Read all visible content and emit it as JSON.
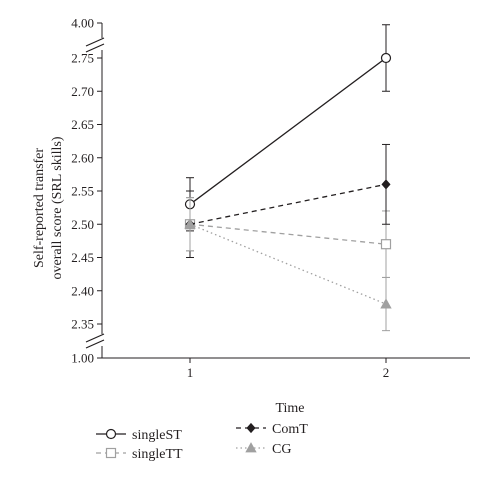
{
  "chart_data": {
    "type": "line",
    "title": "",
    "xlabel": "Time",
    "ylabel_lines": [
      "Self-reported transfer",
      "overall score (SRL skills)"
    ],
    "x": [
      1,
      2
    ],
    "x_tick_labels": [
      "1",
      "2"
    ],
    "y_tick_labels": [
      "1.00",
      "2.35",
      "2.40",
      "2.45",
      "2.50",
      "2.55",
      "2.60",
      "2.65",
      "2.70",
      "2.75",
      "4.00"
    ],
    "y_axis_break": {
      "lower": 1.0,
      "upper": 4.0,
      "range": [
        2.35,
        2.75
      ]
    },
    "grid": false,
    "legend_position": "bottom",
    "series": [
      {
        "name": "singleST",
        "values": [
          2.53,
          2.75
        ],
        "error": [
          [
            2.49,
            2.57
          ],
          [
            2.7,
            2.8
          ]
        ],
        "line_style": "solid",
        "marker": "circle-open",
        "color": "#231f20"
      },
      {
        "name": "singleTT",
        "values": [
          2.5,
          2.47
        ],
        "error": [
          [
            2.46,
            2.54
          ],
          [
            2.42,
            2.52
          ]
        ],
        "line_style": "dashed",
        "marker": "square-open",
        "color": "#a0a0a0"
      },
      {
        "name": "ComT",
        "values": [
          2.5,
          2.56
        ],
        "error": [
          [
            2.45,
            2.55
          ],
          [
            2.5,
            2.62
          ]
        ],
        "line_style": "dashed",
        "marker": "diamond-filled",
        "color": "#231f20"
      },
      {
        "name": "CG",
        "values": [
          2.5,
          2.38
        ],
        "error": [
          [
            2.46,
            2.54
          ],
          [
            2.34,
            2.42
          ]
        ],
        "line_style": "dotted",
        "marker": "triangle-filled",
        "color": "#a0a0a0"
      }
    ]
  }
}
